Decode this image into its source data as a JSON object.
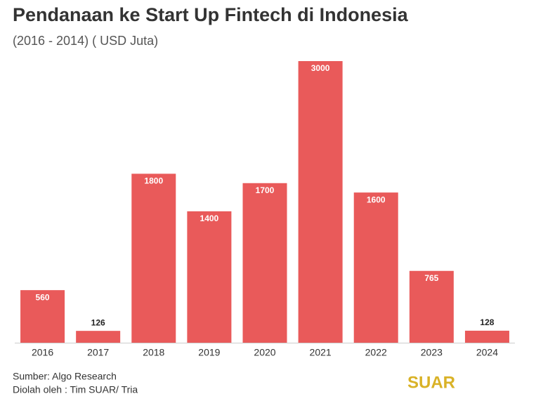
{
  "chart_data": {
    "type": "bar",
    "title": "Pendanaan ke Start Up Fintech di Indonesia",
    "subtitle": "(2016 - 2014) ( USD Juta)",
    "categories": [
      "2016",
      "2017",
      "2018",
      "2019",
      "2020",
      "2021",
      "2022",
      "2023",
      "2024"
    ],
    "values": [
      560,
      126,
      1800,
      1400,
      1700,
      3000,
      1600,
      765,
      128
    ],
    "color": "#e95a5a",
    "source": "Sumber: Algo Research",
    "credit": "Diolah oleh : Tim SUAR/ Tria",
    "logo": "SUAR"
  }
}
